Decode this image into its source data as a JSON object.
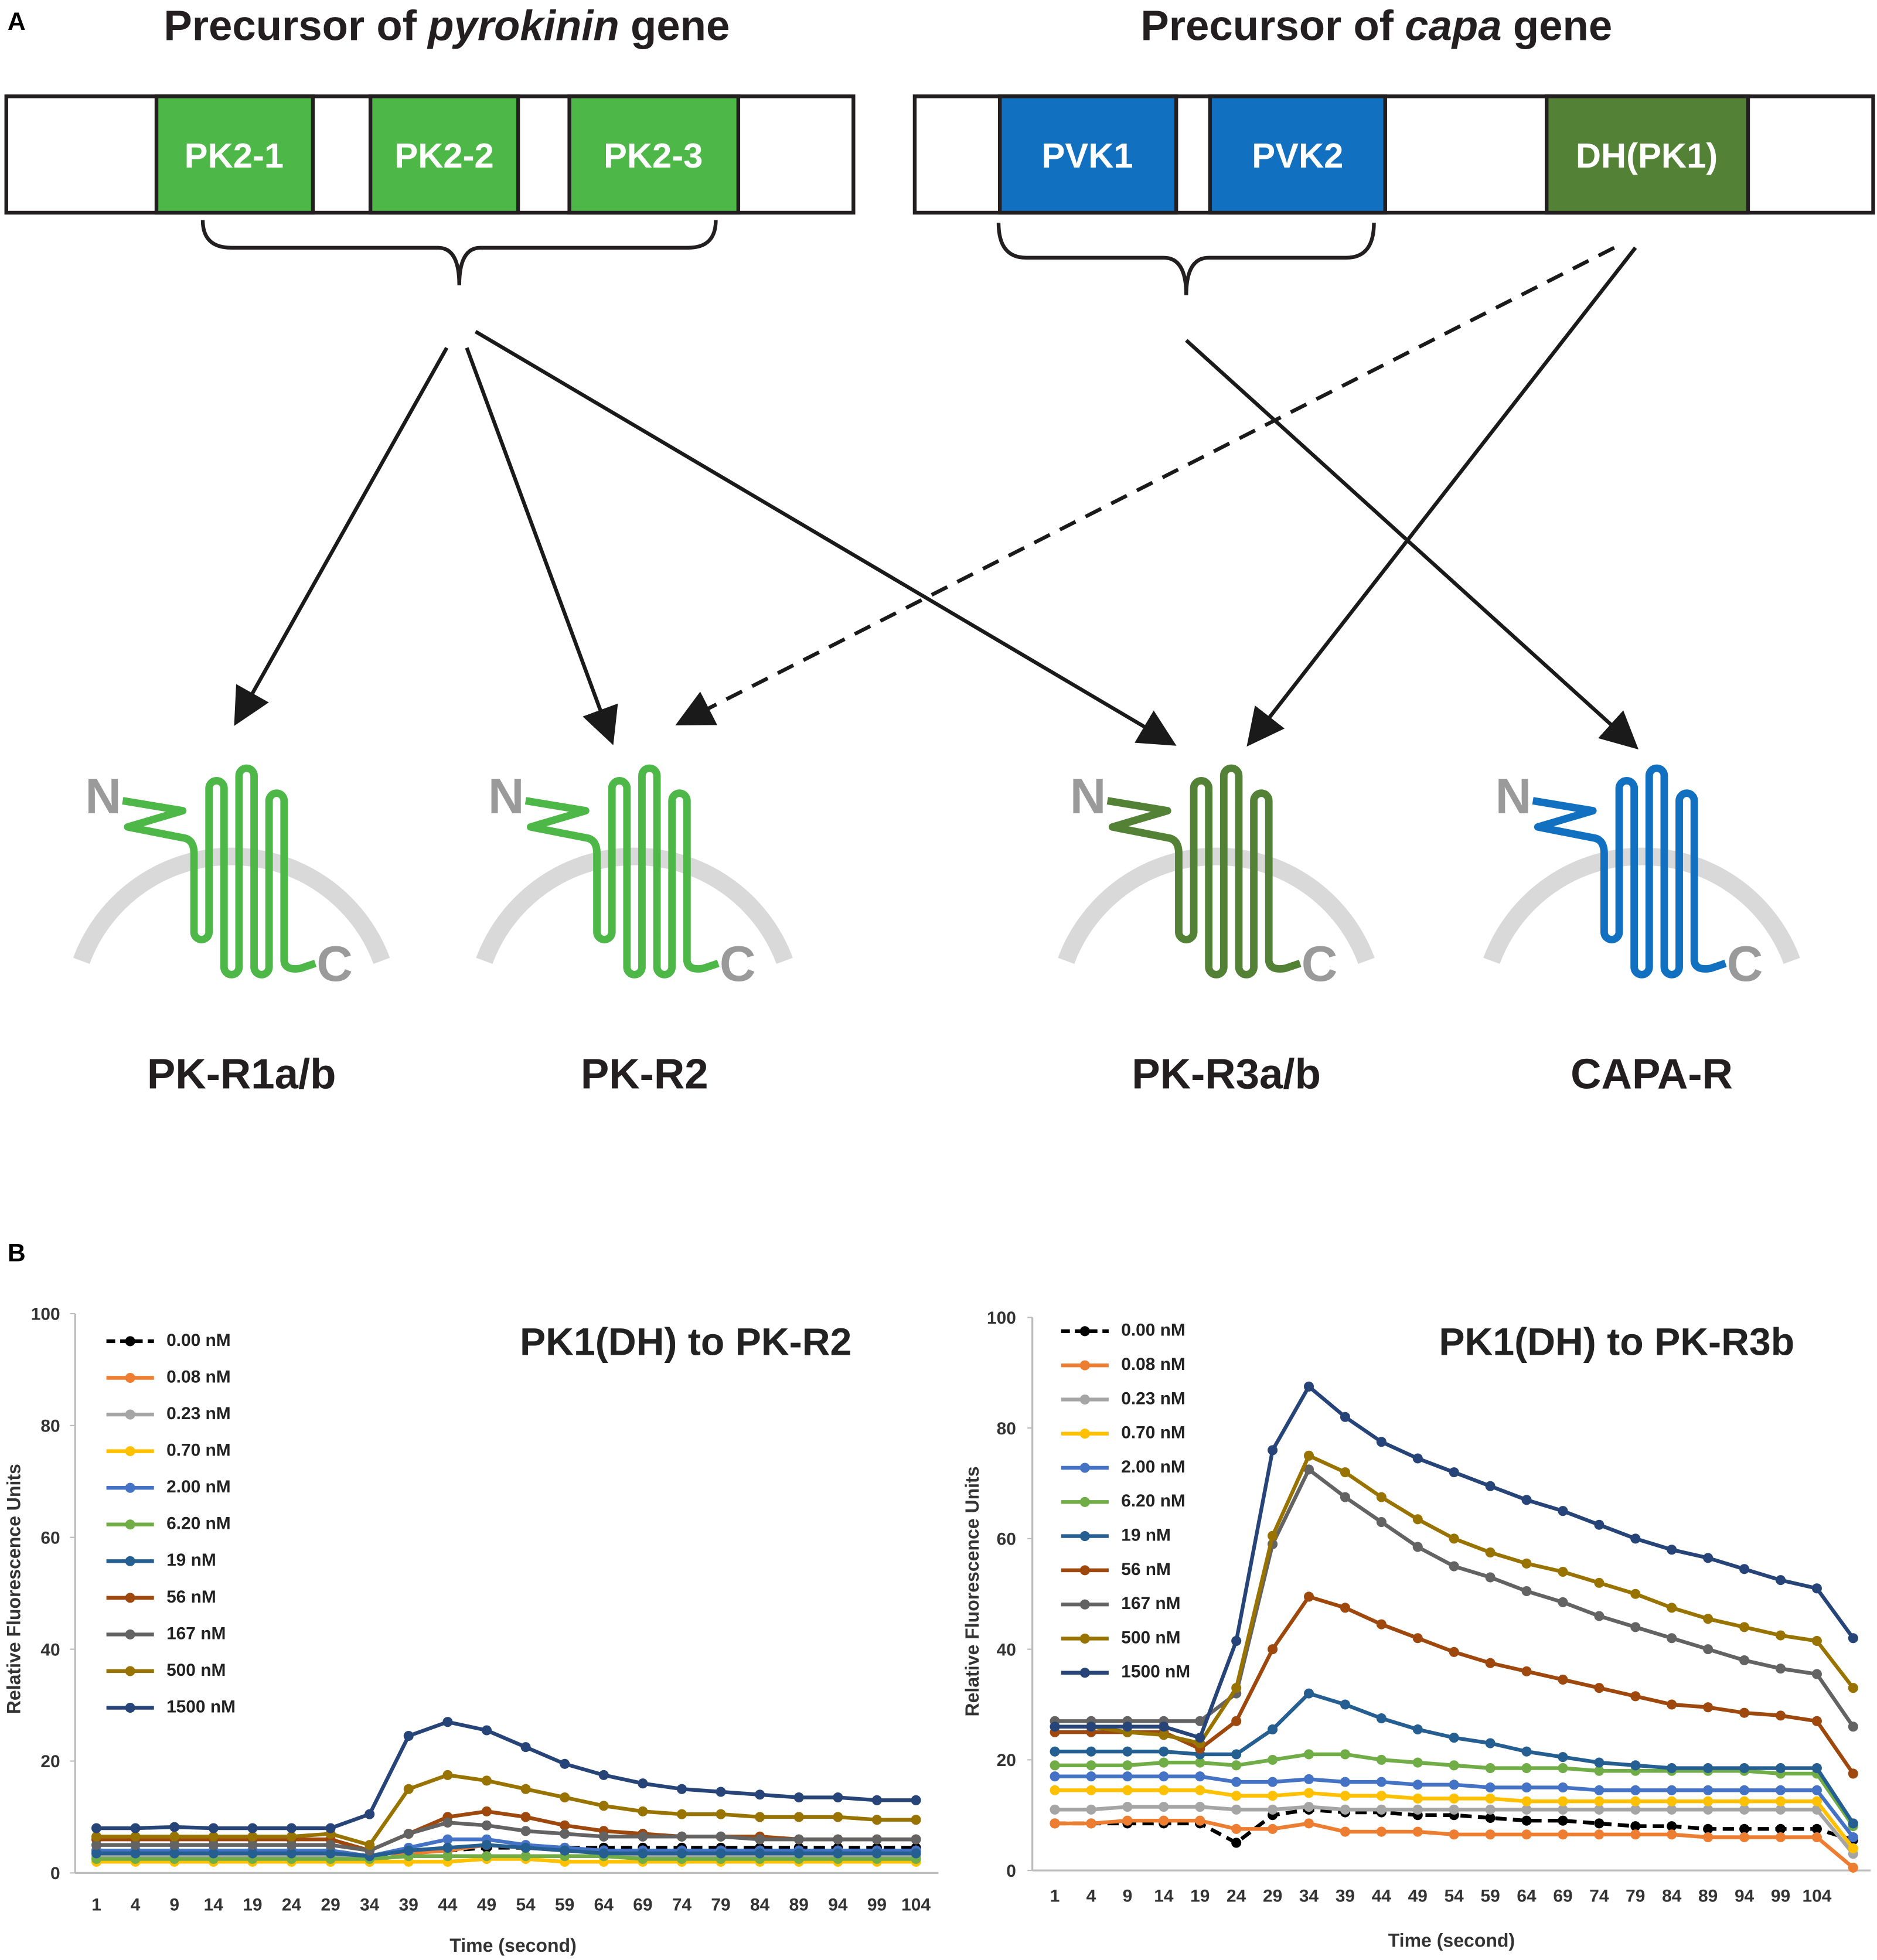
{
  "panel_labels": [
    "A",
    "B"
  ],
  "diagram": {
    "precursors": [
      {
        "title_prefix": "Precursor of",
        "title_gene": "pyrokinin",
        "title_suffix": "gene",
        "peptides": [
          "PK2-1",
          "PK2-2",
          "PK2-3"
        ]
      },
      {
        "title_prefix": "Precursor of",
        "title_gene": "capa",
        "title_suffix": "gene",
        "peptides": [
          "PVK1",
          "PVK2",
          "DH(PK1)"
        ]
      }
    ],
    "receptors": [
      {
        "label": "PK-R1a/b",
        "n": "N",
        "c": "C"
      },
      {
        "label": "PK-R2",
        "n": "N",
        "c": "C"
      },
      {
        "label": "PK-R3a/b",
        "n": "N",
        "c": "C"
      },
      {
        "label": "CAPA-R",
        "n": "N",
        "c": "C"
      }
    ]
  },
  "chart_data": [
    {
      "type": "line",
      "title": "PK1(DH) to PK-R2",
      "x_label": "Time (second)",
      "y_label": "Relative Fluorescence Units",
      "categories": [
        "1",
        "4",
        "9",
        "14",
        "19",
        "24",
        "29",
        "34",
        "39",
        "44",
        "49",
        "54",
        "59",
        "64",
        "69",
        "74",
        "79",
        "84",
        "89",
        "94",
        "99",
        "104"
      ],
      "ylim": [
        0,
        100
      ],
      "yticks": [
        0,
        20,
        40,
        60,
        80,
        100
      ],
      "grid": false,
      "legend": "upper-left",
      "series": [
        {
          "name": "0.00 nM",
          "color": "#000000",
          "style": "dashed",
          "values": [
            4,
            4,
            4,
            4,
            4,
            4,
            4,
            3,
            4,
            4,
            4.5,
            4.5,
            4.5,
            4.5,
            4.5,
            4.5,
            4.5,
            4.5,
            4.5,
            4.5,
            4.5,
            4.5
          ]
        },
        {
          "name": "0.08 nM",
          "color": "#ed7d31",
          "values": [
            4,
            4,
            4,
            4,
            4,
            4,
            4,
            2,
            3.5,
            4,
            5,
            4.5,
            4,
            4,
            4,
            4,
            4,
            4,
            4,
            4,
            4,
            4
          ]
        },
        {
          "name": "0.23 nM",
          "color": "#a5a5a5",
          "values": [
            3,
            3,
            3,
            3,
            3,
            3,
            3,
            2.5,
            3,
            3,
            3,
            3,
            3,
            3,
            3,
            3,
            3,
            3,
            3,
            3,
            3,
            3
          ]
        },
        {
          "name": "0.70 nM",
          "color": "#ffc000",
          "values": [
            2,
            2,
            2,
            2,
            2,
            2,
            2,
            2,
            2,
            2,
            2.5,
            2.5,
            2,
            2,
            2,
            2,
            2,
            2,
            2,
            2,
            2,
            2
          ]
        },
        {
          "name": "2.00 nM",
          "color": "#4472c4",
          "values": [
            4,
            4,
            4,
            4,
            4,
            4,
            4,
            3,
            4.5,
            6,
            6,
            5,
            4.5,
            4,
            4,
            4,
            4,
            4,
            4,
            4,
            4,
            4
          ]
        },
        {
          "name": "6.20 nM",
          "color": "#70ad47",
          "values": [
            2.5,
            2.5,
            2.5,
            2.5,
            2.5,
            2.5,
            2.5,
            2.5,
            3,
            3,
            3,
            3,
            3,
            3,
            2.5,
            2.5,
            2.5,
            2.5,
            2.5,
            2.5,
            2.5,
            2.5
          ]
        },
        {
          "name": "19 nM",
          "color": "#255e91",
          "values": [
            3.5,
            3.5,
            3.5,
            3.5,
            3.5,
            3.5,
            3.5,
            3,
            4,
            4.5,
            5,
            4.5,
            4,
            3.5,
            3.5,
            3.5,
            3.5,
            3.5,
            3.5,
            3.5,
            3.5,
            3.5
          ]
        },
        {
          "name": "56 nM",
          "color": "#9e480e",
          "values": [
            6,
            6,
            6,
            6,
            6,
            6,
            6,
            4,
            7,
            10,
            11,
            10,
            8.5,
            7.5,
            7,
            6.5,
            6.5,
            6.5,
            6,
            6,
            6,
            6
          ]
        },
        {
          "name": "167 nM",
          "color": "#636363",
          "values": [
            5,
            5,
            5,
            5,
            5,
            5,
            5,
            4,
            7,
            9,
            8.5,
            7.5,
            7,
            6.5,
            6.5,
            6.5,
            6.5,
            6,
            6,
            6,
            6,
            6
          ]
        },
        {
          "name": "500 nM",
          "color": "#997300",
          "values": [
            6.5,
            6.5,
            6.5,
            6.5,
            6.5,
            6.5,
            7,
            5,
            15,
            17.5,
            16.5,
            15,
            13.5,
            12,
            11,
            10.5,
            10.5,
            10,
            10,
            10,
            9.5,
            9.5
          ]
        },
        {
          "name": "1500 nM",
          "color": "#264478",
          "values": [
            8,
            8,
            8.2,
            8,
            8,
            8,
            8,
            10.5,
            24.5,
            27,
            25.5,
            22.5,
            19.5,
            17.5,
            16,
            15,
            14.5,
            14,
            13.5,
            13.5,
            13,
            13
          ]
        }
      ]
    },
    {
      "type": "line",
      "title": "PK1(DH) to PK-R3b",
      "x_label": "Time (second)",
      "y_label": "Relative Fluorescence Units",
      "categories": [
        "1",
        "4",
        "9",
        "14",
        "19",
        "24",
        "29",
        "34",
        "39",
        "44",
        "49",
        "54",
        "59",
        "64",
        "69",
        "74",
        "79",
        "84",
        "89",
        "94",
        "99",
        "104",
        null
      ],
      "ylim": [
        0,
        100
      ],
      "yticks": [
        0,
        20,
        40,
        60,
        80,
        100
      ],
      "grid": false,
      "legend": "upper-left",
      "series": [
        {
          "name": "0.00 nM",
          "color": "#000000",
          "style": "dashed",
          "values": [
            8.5,
            8.5,
            8.5,
            8.5,
            8.5,
            5,
            10,
            11,
            10.5,
            10.5,
            10,
            10,
            9.5,
            9,
            9,
            8.5,
            8,
            8,
            7.5,
            7.5,
            7.5,
            7.5,
            5.5
          ]
        },
        {
          "name": "0.08 nM",
          "color": "#ed7d31",
          "values": [
            8.5,
            8.5,
            9,
            9,
            9,
            7.5,
            7.5,
            8.5,
            7,
            7,
            7,
            6.5,
            6.5,
            6.5,
            6.5,
            6.5,
            6.5,
            6.5,
            6,
            6,
            6,
            6,
            0.5
          ]
        },
        {
          "name": "0.23 nM",
          "color": "#a5a5a5",
          "values": [
            11,
            11,
            11.5,
            11.5,
            11.5,
            11,
            11,
            11.5,
            11,
            11,
            11,
            11,
            11,
            11,
            11,
            11,
            11,
            11,
            11,
            11,
            11,
            11,
            3
          ]
        },
        {
          "name": "0.70 nM",
          "color": "#ffc000",
          "values": [
            14.5,
            14.5,
            14.5,
            14.5,
            14.5,
            13.5,
            13.5,
            14,
            13.5,
            13.5,
            13,
            13,
            13,
            12.5,
            12.5,
            12.5,
            12.5,
            12.5,
            12.5,
            12.5,
            12.5,
            12.5,
            4
          ]
        },
        {
          "name": "2.00 nM",
          "color": "#4472c4",
          "values": [
            17,
            17,
            17,
            17,
            17,
            16,
            16,
            16.5,
            16,
            16,
            15.5,
            15.5,
            15,
            15,
            15,
            14.5,
            14.5,
            14.5,
            14.5,
            14.5,
            14.5,
            14.5,
            6
          ]
        },
        {
          "name": "6.20 nM",
          "color": "#70ad47",
          "values": [
            19,
            19,
            19,
            19.5,
            19.5,
            19,
            20,
            21,
            21,
            20,
            19.5,
            19,
            18.5,
            18.5,
            18.5,
            18,
            18,
            18,
            18,
            18,
            17.5,
            17.5,
            8
          ]
        },
        {
          "name": "19 nM",
          "color": "#255e91",
          "values": [
            21.5,
            21.5,
            21.5,
            21.5,
            21,
            21,
            25.5,
            32,
            30,
            27.5,
            25.5,
            24,
            23,
            21.5,
            20.5,
            19.5,
            19,
            18.5,
            18.5,
            18.5,
            18.5,
            18.5,
            8.5
          ]
        },
        {
          "name": "56 nM",
          "color": "#9e480e",
          "values": [
            25,
            25,
            25,
            25,
            22,
            27,
            40,
            49.5,
            47.5,
            44.5,
            42,
            39.5,
            37.5,
            36,
            34.5,
            33,
            31.5,
            30,
            29.5,
            28.5,
            28,
            27,
            17.5
          ]
        },
        {
          "name": "167 nM",
          "color": "#636363",
          "values": [
            27,
            27,
            27,
            27,
            27,
            32,
            59,
            72.5,
            67.5,
            63,
            58.5,
            55,
            53,
            50.5,
            48.5,
            46,
            44,
            42,
            40,
            38,
            36.5,
            35.5,
            26
          ]
        },
        {
          "name": "500 nM",
          "color": "#997300",
          "values": [
            26,
            26,
            25,
            24.5,
            23,
            33,
            60.5,
            75,
            72,
            67.5,
            63.5,
            60,
            57.5,
            55.5,
            54,
            52,
            50,
            47.5,
            45.5,
            44,
            42.5,
            41.5,
            33
          ]
        },
        {
          "name": "1500 nM",
          "color": "#264478",
          "values": [
            26,
            26,
            26,
            26,
            24,
            41.5,
            76,
            87.5,
            82,
            77.5,
            74.5,
            72,
            69.5,
            67,
            65,
            62.5,
            60,
            58,
            56.5,
            54.5,
            52.5,
            51,
            42
          ]
        }
      ]
    }
  ]
}
